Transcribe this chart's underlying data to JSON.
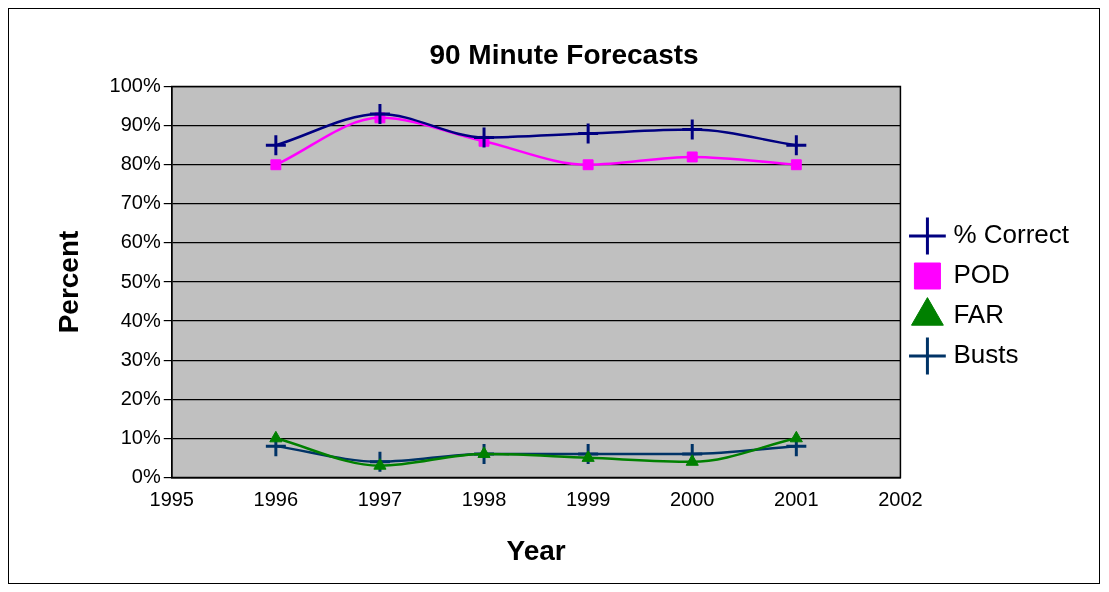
{
  "chart_data": {
    "type": "line",
    "title": "90 Minute Forecasts",
    "xlabel": "Year",
    "ylabel": "Percent",
    "x": [
      1996,
      1997,
      1998,
      1999,
      2000,
      2001
    ],
    "series": [
      {
        "name": "% Correct",
        "color": "#000080",
        "marker": "cross",
        "values": [
          85,
          93,
          87,
          88,
          89,
          85
        ]
      },
      {
        "name": "POD",
        "color": "#ff00ff",
        "marker": "square",
        "values": [
          80,
          92,
          86,
          80,
          82,
          80
        ]
      },
      {
        "name": "FAR",
        "color": "#008000",
        "marker": "triangle",
        "values": [
          10,
          3,
          6,
          5,
          4,
          10
        ]
      },
      {
        "name": "Busts",
        "color": "#003366",
        "marker": "cross",
        "values": [
          8,
          4,
          6,
          6,
          6,
          8
        ]
      }
    ],
    "xlim": [
      1995,
      2002
    ],
    "xticks": [
      1995,
      1996,
      1997,
      1998,
      1999,
      2000,
      2001,
      2002
    ],
    "ylim": [
      0,
      100
    ],
    "yticks": [
      {
        "value": 0,
        "label": "0%"
      },
      {
        "value": 10,
        "label": "10%"
      },
      {
        "value": 20,
        "label": "20%"
      },
      {
        "value": 30,
        "label": "30%"
      },
      {
        "value": 40,
        "label": "40%"
      },
      {
        "value": 50,
        "label": "50%"
      },
      {
        "value": 60,
        "label": "60%"
      },
      {
        "value": 70,
        "label": "70%"
      },
      {
        "value": 80,
        "label": "80%"
      },
      {
        "value": 90,
        "label": "90%"
      },
      {
        "value": 100,
        "label": "100%"
      }
    ],
    "grid": "y",
    "legend": "right"
  }
}
